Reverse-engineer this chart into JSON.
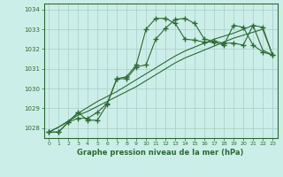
{
  "xlabel": "Graphe pression niveau de la mer (hPa)",
  "background_color": "#cceee8",
  "line_color": "#2d6a35",
  "grid_color": "#aacccc",
  "ylim": [
    1027.5,
    1034.3
  ],
  "xlim": [
    -0.5,
    23.5
  ],
  "yticks": [
    1028,
    1029,
    1030,
    1031,
    1032,
    1033,
    1034
  ],
  "xticks": [
    0,
    1,
    2,
    3,
    4,
    5,
    6,
    7,
    8,
    9,
    10,
    11,
    12,
    13,
    14,
    15,
    16,
    17,
    18,
    19,
    20,
    21,
    22,
    23
  ],
  "series1_x": [
    0,
    1,
    2,
    3,
    4,
    5,
    6,
    7,
    8,
    9,
    10,
    11,
    12,
    13,
    14,
    15,
    16,
    17,
    18,
    19,
    20,
    21,
    22,
    23
  ],
  "series1_y": [
    1027.8,
    1027.8,
    1028.3,
    1028.5,
    1028.5,
    1028.8,
    1029.25,
    1030.5,
    1030.6,
    1031.2,
    1033.0,
    1033.55,
    1033.55,
    1033.3,
    1032.5,
    1032.45,
    1032.35,
    1032.35,
    1032.2,
    1033.2,
    1033.1,
    1032.2,
    1031.85,
    1031.7
  ],
  "series2_x": [
    0,
    1,
    2,
    3,
    4,
    5,
    6,
    7,
    8,
    9,
    10,
    11,
    12,
    13,
    14,
    15,
    16,
    17,
    18,
    19,
    20,
    21,
    22,
    23
  ],
  "series2_y": [
    1027.8,
    1027.8,
    1028.3,
    1028.8,
    1028.4,
    1028.4,
    1029.2,
    1030.5,
    1030.5,
    1031.1,
    1031.2,
    1032.5,
    1033.05,
    1033.5,
    1033.55,
    1033.3,
    1032.5,
    1032.4,
    1032.3,
    1032.3,
    1032.2,
    1033.2,
    1033.1,
    1031.7
  ],
  "series3_x": [
    0,
    1,
    2,
    3,
    4,
    5,
    6,
    7,
    8,
    9,
    10,
    11,
    12,
    13,
    14,
    15,
    16,
    17,
    18,
    19,
    20,
    21,
    22,
    23
  ],
  "series3_y": [
    1027.8,
    1028.05,
    1028.35,
    1028.65,
    1028.85,
    1029.1,
    1029.35,
    1029.6,
    1029.85,
    1030.1,
    1030.4,
    1030.7,
    1031.0,
    1031.3,
    1031.55,
    1031.75,
    1031.95,
    1032.15,
    1032.35,
    1032.55,
    1032.7,
    1032.85,
    1033.0,
    1031.7
  ],
  "series4_x": [
    0,
    1,
    2,
    3,
    4,
    5,
    6,
    7,
    8,
    9,
    10,
    11,
    12,
    13,
    14,
    15,
    16,
    17,
    18,
    19,
    20,
    21,
    22,
    23
  ],
  "series4_y": [
    1027.8,
    1028.05,
    1028.35,
    1028.75,
    1029.05,
    1029.35,
    1029.6,
    1029.85,
    1030.15,
    1030.45,
    1030.75,
    1031.05,
    1031.35,
    1031.65,
    1031.9,
    1032.1,
    1032.3,
    1032.5,
    1032.65,
    1032.8,
    1033.0,
    1033.2,
    1031.95,
    1031.7
  ]
}
